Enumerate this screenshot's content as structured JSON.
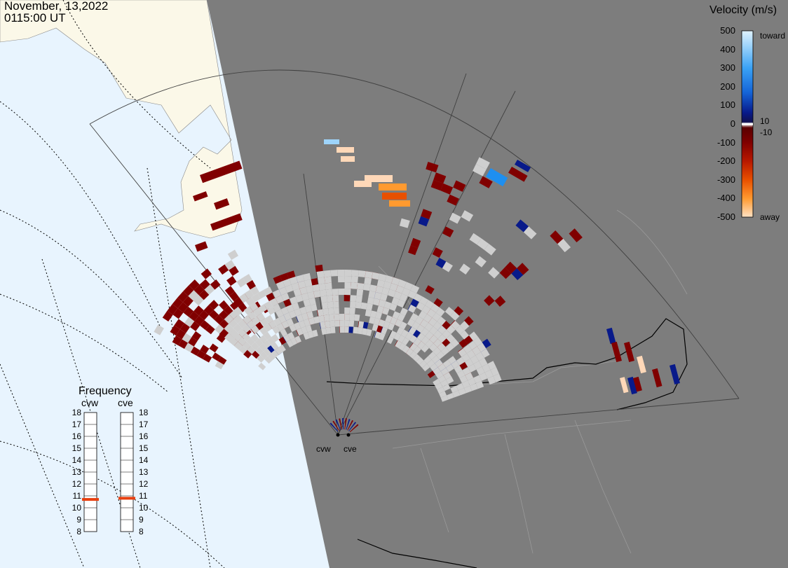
{
  "header": {
    "date": "November, 13,2022",
    "time": "0115:00 UT"
  },
  "colorbar": {
    "title": "Velocity (m/s)",
    "ticks": [
      "500",
      "400",
      "300",
      "200",
      "100",
      "0",
      "-100",
      "-200",
      "-300",
      "-400",
      "-500"
    ],
    "toward_label": "toward",
    "away_label": "away",
    "pos_threshold": "10",
    "neg_threshold": "-10",
    "colors": {
      "toward_light": "#d4ecfc",
      "toward_mid": "#1e8ff0",
      "toward_dark": "#081a8a",
      "away_dark": "#800000",
      "away_mid": "#e85000",
      "away_light": "#ffd8b8",
      "low_velocity": "#cfcfcf"
    }
  },
  "frequency_panel": {
    "title": "Frequency",
    "radars": [
      {
        "name": "cvw",
        "frequency_mhz": 10.7
      },
      {
        "name": "cve",
        "frequency_mhz": 10.8
      }
    ],
    "scale": [
      "18",
      "17",
      "16",
      "15",
      "14",
      "13",
      "12",
      "11",
      "10",
      "9",
      "8"
    ],
    "indicator_color": "#e84010"
  },
  "sites": [
    {
      "name": "cvw"
    },
    {
      "name": "cve"
    }
  ],
  "map_colors": {
    "ocean": "#e8f4fe",
    "land_lit": "#fbf8e8",
    "land_night": "#7d7d7d"
  }
}
